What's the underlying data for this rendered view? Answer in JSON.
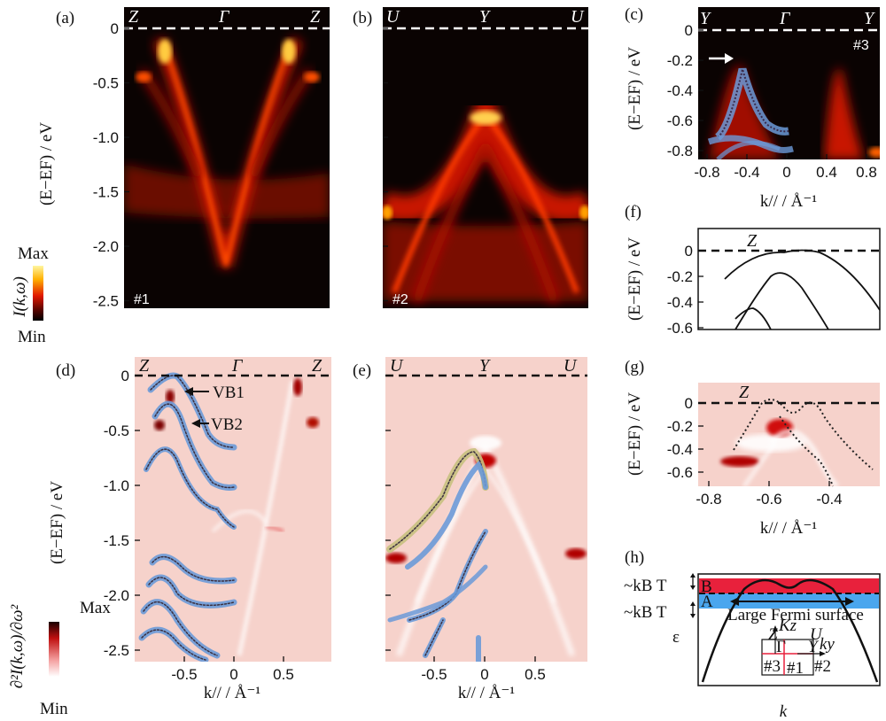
{
  "panels": {
    "a": {
      "label": "(a)",
      "symbols": [
        "Z",
        "Γ",
        "Z"
      ],
      "region": "#1"
    },
    "b": {
      "label": "(b)",
      "symbols": [
        "U",
        "Y",
        "U"
      ],
      "region": "#2"
    },
    "c": {
      "label": "(c)",
      "symbols": [
        "Y",
        "Γ",
        "Y"
      ],
      "region": "#3"
    },
    "d": {
      "label": "(d)",
      "symbols": [
        "Z",
        "Γ",
        "Z"
      ],
      "band_labels": [
        "VB1",
        "VB2"
      ]
    },
    "e": {
      "label": "(e)",
      "symbols": [
        "U",
        "Y",
        "U"
      ]
    },
    "f": {
      "label": "(f)",
      "symbols": [
        "Z"
      ]
    },
    "g": {
      "label": "(g)",
      "symbols": [
        "Z"
      ]
    },
    "h": {
      "label": "(h)",
      "energy_labels": [
        "~kB T",
        "~kB T"
      ],
      "band_letters": [
        "B",
        "A"
      ],
      "fs_label": "Large Fermi surface",
      "x_label": "k",
      "y_label": "ε",
      "inset_labels": [
        "Z",
        "Kz",
        "U",
        "Γ",
        "ky",
        "Y",
        "#3",
        "#1",
        "#2"
      ]
    }
  },
  "axes": {
    "y_label_main": "(E−EF) / eV",
    "x_label_main": "k// / Å⁻¹",
    "ab_yticks": [
      "0",
      "-0.5",
      "-1.0",
      "-1.5",
      "-2.0",
      "-2.5"
    ],
    "de_yticks": [
      "0",
      "-0.5",
      "-1.0",
      "-1.5",
      "-2.0",
      "-2.5"
    ],
    "d_xticks": [
      "-0.5",
      "0",
      "0.5"
    ],
    "e_xticks": [
      "-0.5",
      "0",
      "0.5"
    ],
    "c_yticks": [
      "0",
      "-0.2",
      "-0.4",
      "-0.6",
      "-0.8"
    ],
    "c_xticks": [
      "-0.8",
      "-0.4",
      "0",
      "0.4",
      "0.8"
    ],
    "f_yticks": [
      "0",
      "-0.2",
      "-0.4",
      "-0.6"
    ],
    "g_yticks": [
      "0",
      "-0.2",
      "-0.4",
      "-0.6"
    ],
    "g_xticks": [
      "-0.8",
      "-0.6",
      "-0.4"
    ]
  },
  "colorbars": {
    "top": {
      "max": "Max",
      "min": "Min",
      "quantity": "I(k,ω)"
    },
    "bottom": {
      "max": "Max",
      "min": "Min",
      "quantity": "∂²I(k,ω)/∂ω²"
    }
  },
  "colors": {
    "dark_bg": "#0a0302",
    "hot": "#ff3a00",
    "pink_bg": "#f6d2cb",
    "band_blue": "#6b9ad8",
    "band_red": "#e8213c",
    "band_sky": "#4aa6ee"
  }
}
